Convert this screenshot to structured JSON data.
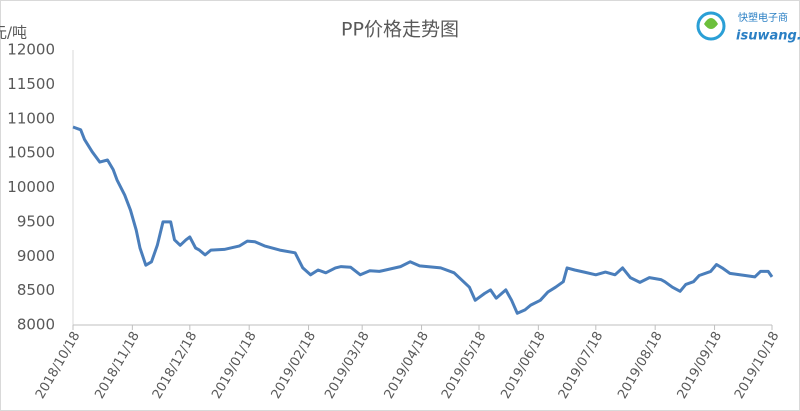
{
  "chart_data": {
    "type": "line",
    "title": "PP价格走势图",
    "y_label": "元/吨",
    "logo": {
      "name": "快塑电子商",
      "site": "isuwang.co"
    },
    "x": [
      "2018/10/18",
      "2018/10/22",
      "2018/10/24",
      "2018/10/28",
      "2018/11/01",
      "2018/11/05",
      "2018/11/08",
      "2018/11/10",
      "2018/11/14",
      "2018/11/17",
      "2018/11/20",
      "2018/11/22",
      "2018/11/25",
      "2018/11/28",
      "2018/12/01",
      "2018/12/04",
      "2018/12/08",
      "2018/12/10",
      "2018/12/13",
      "2018/12/16",
      "2018/12/18",
      "2018/12/21",
      "2018/12/23",
      "2018/12/26",
      "2018/12/29",
      "2019/01/05",
      "2019/01/13",
      "2019/01/17",
      "2019/01/21",
      "2019/01/26",
      "2019/02/03",
      "2019/02/11",
      "2019/02/15",
      "2019/02/19",
      "2019/02/23",
      "2019/02/27",
      "2019/03/04",
      "2019/03/07",
      "2019/03/12",
      "2019/03/17",
      "2019/03/22",
      "2019/03/27",
      "2019/04/07",
      "2019/04/12",
      "2019/04/17",
      "2019/04/28",
      "2019/05/05",
      "2019/05/13",
      "2019/05/16",
      "2019/05/21",
      "2019/05/24",
      "2019/05/27",
      "2019/06/01",
      "2019/06/04",
      "2019/06/07",
      "2019/06/11",
      "2019/06/14",
      "2019/06/19",
      "2019/06/23",
      "2019/06/27",
      "2019/07/01",
      "2019/07/03",
      "2019/07/07",
      "2019/07/12",
      "2019/07/18",
      "2019/07/23",
      "2019/07/28",
      "2019/08/01",
      "2019/08/05",
      "2019/08/10",
      "2019/08/15",
      "2019/08/21",
      "2019/08/23",
      "2019/08/27",
      "2019/08/31",
      "2019/09/03",
      "2019/09/07",
      "2019/09/10",
      "2019/09/16",
      "2019/09/19",
      "2019/09/22",
      "2019/09/26",
      "2019/10/04",
      "2019/10/09",
      "2019/10/12",
      "2019/10/16",
      "2019/10/18"
    ],
    "series": [
      {
        "name": "PP",
        "color": "#4a7ebb",
        "values": [
          10880,
          10840,
          10700,
          10520,
          10370,
          10400,
          10260,
          10110,
          9890,
          9670,
          9380,
          9120,
          8870,
          8920,
          9160,
          9500,
          9500,
          9240,
          9160,
          9240,
          9280,
          9120,
          9090,
          9020,
          9090,
          9100,
          9150,
          9220,
          9210,
          9150,
          9090,
          9050,
          8830,
          8730,
          8800,
          8760,
          8830,
          8850,
          8840,
          8730,
          8790,
          8780,
          8850,
          8920,
          8860,
          8830,
          8760,
          8550,
          8360,
          8460,
          8510,
          8390,
          8510,
          8360,
          8170,
          8220,
          8290,
          8360,
          8480,
          8550,
          8630,
          8830,
          8800,
          8770,
          8730,
          8770,
          8730,
          8830,
          8690,
          8620,
          8690,
          8660,
          8630,
          8550,
          8490,
          8590,
          8630,
          8720,
          8780,
          8880,
          8830,
          8750,
          8720,
          8700,
          8780,
          8780,
          8700
        ]
      }
    ],
    "xlim": [
      "2018/10/18",
      "2019/10/18"
    ],
    "xticks": [
      "2018/10/18",
      "2018/11/18",
      "2018/12/18",
      "2019/01/18",
      "2019/02/18",
      "2019/03/18",
      "2019/04/18",
      "2019/05/18",
      "2019/06/18",
      "2019/07/18",
      "2019/08/18",
      "2019/09/18",
      "2019/10/18"
    ],
    "ylim": [
      8000,
      12000
    ],
    "yticks": [
      8000,
      8500,
      9000,
      9500,
      10000,
      10500,
      11000,
      11500,
      12000
    ],
    "grid": false
  }
}
